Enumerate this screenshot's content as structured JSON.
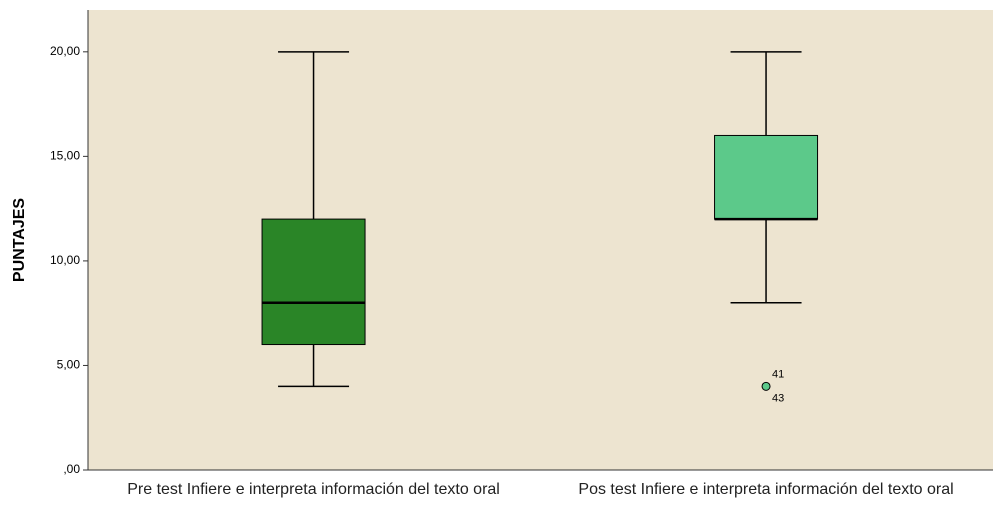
{
  "chart_data": {
    "type": "box",
    "y_label": "PUNTAJES",
    "categories": [
      "Pre test Infiere e interpreta información del texto oral",
      "Pos test Infiere e interpreta información del texto oral"
    ],
    "series": [
      {
        "name": "PUNTAJES",
        "colors": [
          "#2a8527",
          "#5cc98a"
        ],
        "min": [
          4,
          8
        ],
        "q1": [
          6,
          12
        ],
        "median": [
          8,
          12
        ],
        "q3": [
          12,
          16
        ],
        "max": [
          20,
          20
        ],
        "outliers": [
          [],
          [
            {
              "value": 4,
              "labels": [
                "41",
                "43"
              ]
            }
          ]
        ]
      }
    ],
    "ylim": [
      0,
      22
    ],
    "yticks": [
      {
        "value": 0,
        "label": ",00"
      },
      {
        "value": 5,
        "label": "5,00"
      },
      {
        "value": 10,
        "label": "10,00"
      },
      {
        "value": 15,
        "label": "15,00"
      },
      {
        "value": 20,
        "label": "20,00"
      }
    ],
    "grid": false,
    "background": "#ede4d0"
  }
}
